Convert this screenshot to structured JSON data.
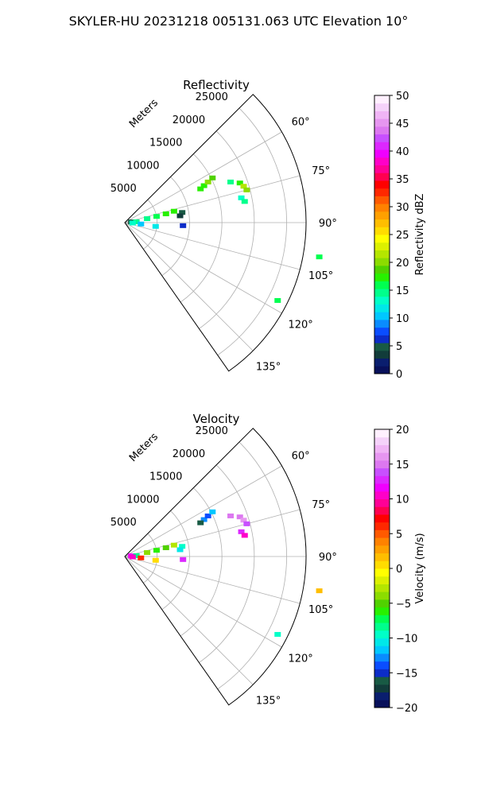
{
  "suptitle": "SKYLER-HU  20231218  005131.063 UTC Elevation 10°",
  "range_unit_label": "Meters",
  "chart_data": [
    {
      "type": "polar-ppi",
      "title": "Reflectivity",
      "range_label": "Meters",
      "range_ticks": [
        5000,
        10000,
        15000,
        20000,
        25000
      ],
      "range_tick_labels": [
        "5000",
        "10000",
        "15000",
        "20000",
        "25000"
      ],
      "range_max": 28000,
      "azimuth_range_deg": [
        45,
        145
      ],
      "azimuth_ticks": [
        60,
        75,
        90,
        105,
        120,
        135
      ],
      "azimuth_tick_labels": [
        "60°",
        "75°",
        "90°",
        "105°",
        "120°",
        "135°"
      ],
      "grid": true,
      "colorbar": {
        "label": "Reflectivity dBZ",
        "min": 0,
        "max": 50,
        "ticks": [
          0,
          5,
          10,
          15,
          20,
          25,
          30,
          35,
          40,
          45,
          50
        ],
        "tick_labels": [
          "0",
          "5",
          "10",
          "15",
          "20",
          "25",
          "30",
          "35",
          "40",
          "45",
          "50"
        ],
        "bands": [
          "#08105a",
          "#0a1e6e",
          "#113c3a",
          "#185a44",
          "#0c2cc8",
          "#0a4dff",
          "#0a8cff",
          "#00c8ff",
          "#00e8e8",
          "#00ffc8",
          "#00ff8c",
          "#00ff50",
          "#28f000",
          "#50d200",
          "#8cdc00",
          "#b4e600",
          "#dcf000",
          "#ffff00",
          "#ffdc00",
          "#ffbe00",
          "#ffa000",
          "#ff8200",
          "#ff5a00",
          "#ff2800",
          "#ff0000",
          "#ff0050",
          "#ff0096",
          "#ff00c8",
          "#f000ff",
          "#dc28ff",
          "#c850ff",
          "#dc78f0",
          "#e696f0",
          "#f0b4f5",
          "#f5d2fa",
          "#fff0ff"
        ]
      },
      "echoes": [
        {
          "az": 65,
          "r": 13500,
          "value": 18
        },
        {
          "az": 64,
          "r": 14300,
          "value": 20
        },
        {
          "az": 63,
          "r": 15200,
          "value": 19
        },
        {
          "az": 66,
          "r": 12800,
          "value": 17
        },
        {
          "az": 69,
          "r": 17500,
          "value": 14
        },
        {
          "az": 71,
          "r": 18800,
          "value": 18
        },
        {
          "az": 73,
          "r": 19200,
          "value": 22
        },
        {
          "az": 75,
          "r": 19500,
          "value": 20
        },
        {
          "az": 78,
          "r": 18400,
          "value": 13
        },
        {
          "az": 80,
          "r": 18800,
          "value": 14
        },
        {
          "az": 80,
          "r": 9000,
          "value": 5
        },
        {
          "az": 83,
          "r": 8600,
          "value": 4
        },
        {
          "az": 80,
          "r": 3500,
          "value": 15
        },
        {
          "az": 79,
          "r": 5000,
          "value": 16
        },
        {
          "az": 78,
          "r": 6500,
          "value": 18
        },
        {
          "az": 77,
          "r": 7800,
          "value": 17
        },
        {
          "az": 84,
          "r": 1000,
          "value": 5
        },
        {
          "az": 86,
          "r": 1800,
          "value": 14
        },
        {
          "az": 93,
          "r": 1200,
          "value": 13
        },
        {
          "az": 95,
          "r": 2500,
          "value": 10
        },
        {
          "az": 97,
          "r": 4800,
          "value": 12
        },
        {
          "az": 93,
          "r": 9000,
          "value": 6
        },
        {
          "az": 100,
          "r": 30500,
          "value": 16
        },
        {
          "az": 117,
          "r": 26500,
          "value": 16
        }
      ]
    },
    {
      "type": "polar-ppi",
      "title": "Velocity",
      "range_label": "Meters",
      "range_ticks": [
        5000,
        10000,
        15000,
        20000,
        25000
      ],
      "range_tick_labels": [
        "5000",
        "10000",
        "15000",
        "20000",
        "25000"
      ],
      "range_max": 28000,
      "azimuth_range_deg": [
        45,
        145
      ],
      "azimuth_ticks": [
        60,
        75,
        90,
        105,
        120,
        135
      ],
      "azimuth_tick_labels": [
        "60°",
        "75°",
        "90°",
        "105°",
        "120°",
        "135°"
      ],
      "grid": true,
      "colorbar": {
        "label": "Velocity (m/s)",
        "min": -20,
        "max": 20,
        "ticks": [
          -20,
          -15,
          -10,
          -5,
          0,
          5,
          10,
          15,
          20
        ],
        "tick_labels": [
          "−20",
          "−15",
          "−10",
          "−5",
          "0",
          "5",
          "10",
          "15",
          "20"
        ],
        "bands": [
          "#08105a",
          "#0a1e6e",
          "#113c3a",
          "#185a44",
          "#0c2cc8",
          "#0a4dff",
          "#0a8cff",
          "#00c8ff",
          "#00e8e8",
          "#00ffc8",
          "#00ff8c",
          "#00ff50",
          "#28f000",
          "#50d200",
          "#8cdc00",
          "#b4e600",
          "#dcf000",
          "#ffff00",
          "#ffdc00",
          "#ffbe00",
          "#ffa000",
          "#ff8200",
          "#ff5a00",
          "#ff2800",
          "#ff0000",
          "#ff0050",
          "#ff0096",
          "#ff00c8",
          "#f000ff",
          "#dc28ff",
          "#c850ff",
          "#dc78f0",
          "#e696f0",
          "#f0b4f5",
          "#f5d2fa",
          "#fff0ff"
        ]
      },
      "echoes": [
        {
          "az": 65,
          "r": 13500,
          "value": -13
        },
        {
          "az": 64,
          "r": 14300,
          "value": -14
        },
        {
          "az": 63,
          "r": 15200,
          "value": -12
        },
        {
          "az": 66,
          "r": 12800,
          "value": -16
        },
        {
          "az": 69,
          "r": 17500,
          "value": 15
        },
        {
          "az": 71,
          "r": 18800,
          "value": 15
        },
        {
          "az": 73,
          "r": 19200,
          "value": 16
        },
        {
          "az": 75,
          "r": 19500,
          "value": 14
        },
        {
          "az": 78,
          "r": 18400,
          "value": 13
        },
        {
          "az": 80,
          "r": 18800,
          "value": 11
        },
        {
          "az": 80,
          "r": 9000,
          "value": -10
        },
        {
          "az": 83,
          "r": 8600,
          "value": -11
        },
        {
          "az": 80,
          "r": 3500,
          "value": -4
        },
        {
          "az": 79,
          "r": 5000,
          "value": -6
        },
        {
          "az": 78,
          "r": 6500,
          "value": -5
        },
        {
          "az": 77,
          "r": 7800,
          "value": -3
        },
        {
          "az": 84,
          "r": 1000,
          "value": 12
        },
        {
          "az": 86,
          "r": 1800,
          "value": -8
        },
        {
          "az": 93,
          "r": 1200,
          "value": 11
        },
        {
          "az": 95,
          "r": 2500,
          "value": 6
        },
        {
          "az": 97,
          "r": 4800,
          "value": 0
        },
        {
          "az": 93,
          "r": 9000,
          "value": 13
        },
        {
          "az": 100,
          "r": 30500,
          "value": 2
        },
        {
          "az": 117,
          "r": 26500,
          "value": -10
        }
      ]
    }
  ]
}
